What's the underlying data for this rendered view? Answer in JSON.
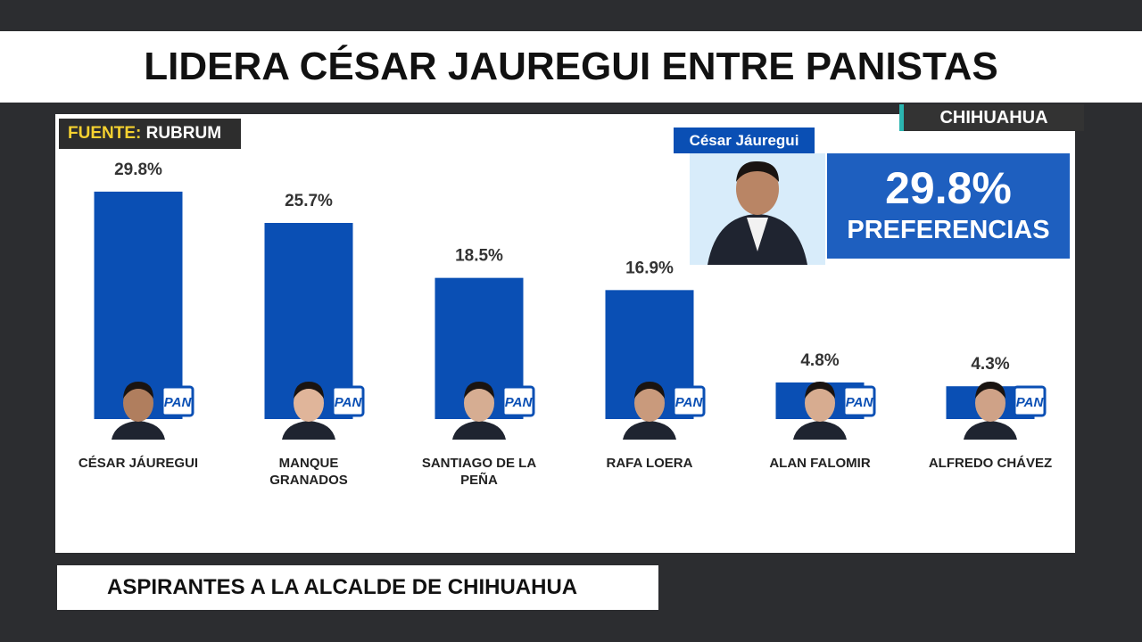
{
  "header": {
    "title": "LIDERA CÉSAR JAUREGUI ENTRE PANISTAS",
    "region": "CHIHUAHUA"
  },
  "source": {
    "label": "FUENTE:",
    "name": "RUBRUM"
  },
  "highlight": {
    "name": "César Jáuregui",
    "caption": "PREFERENCIAS"
  },
  "party_logo_text": "PAN",
  "footer": {
    "caption": "ASPIRANTES A LA ALCALDE DE CHIHUAHUA"
  },
  "chart_data": {
    "type": "bar",
    "categories": [
      "CÉSAR JÁUREGUI",
      "MANQUE GRANADOS",
      "SANTIAGO DE LA PEÑA",
      "RAFA LOERA",
      "ALAN FALOMIR",
      "ALFREDO CHÁVEZ"
    ],
    "values": [
      29.8,
      25.7,
      18.5,
      16.9,
      4.8,
      4.3
    ],
    "value_labels": [
      "29.8%",
      "25.7%",
      "18.5%",
      "16.9%",
      "4.8%",
      "4.3%"
    ],
    "color": "#0a4fb4"
  }
}
